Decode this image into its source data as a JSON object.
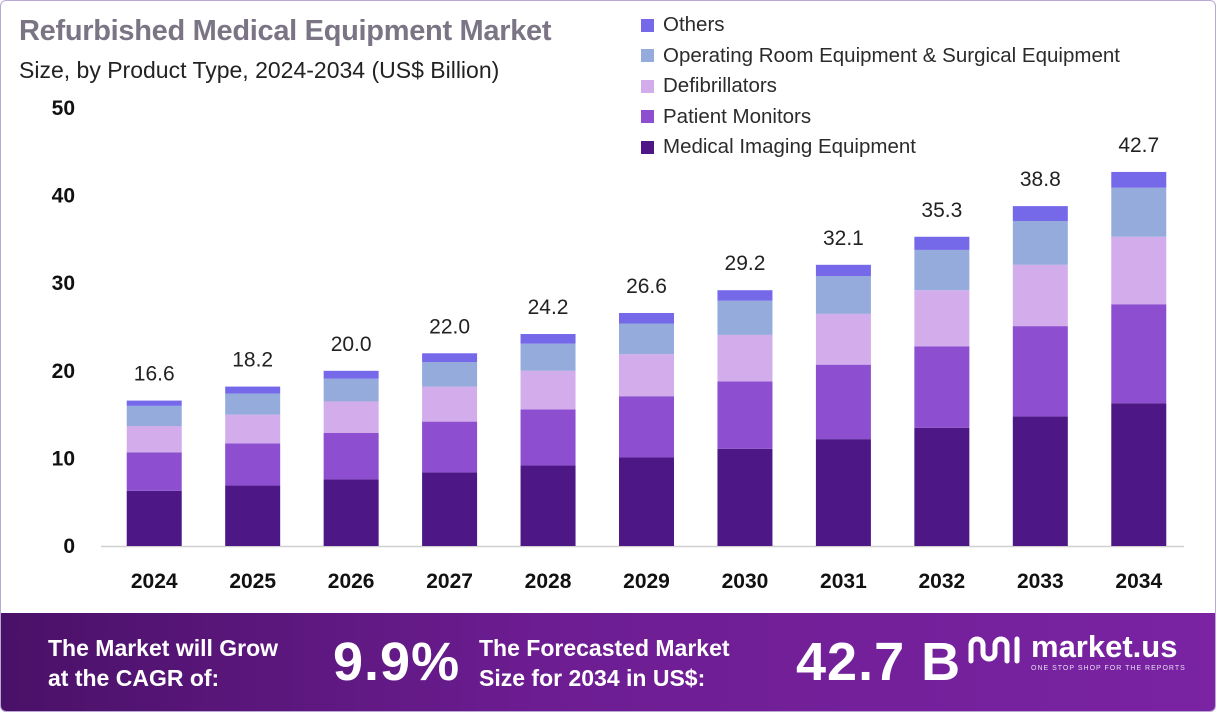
{
  "title": "Refurbished Medical Equipment Market",
  "subtitle": "Size, by Product Type, 2024-2034 (US$ Billion)",
  "colors": {
    "medical_imaging": "#4d1785",
    "patient_monitors": "#8d4fcf",
    "defibrillators": "#d3acec",
    "or_surgical": "#94abdb",
    "others": "#7569ea",
    "banner": "#6d1d92"
  },
  "chart_data": {
    "type": "stacked-bar",
    "title": "Refurbished Medical Equipment Market",
    "subtitle": "Size, by Product Type, 2024-2034 (US$ Billion)",
    "categories": [
      "2024",
      "2025",
      "2026",
      "2027",
      "2028",
      "2029",
      "2030",
      "2031",
      "2032",
      "2033",
      "2034"
    ],
    "yticks": [
      0,
      10,
      20,
      30,
      40,
      50
    ],
    "ylim": [
      0,
      50
    ],
    "grid": false,
    "legend_position": "top-right",
    "series": [
      {
        "name": "Medical Imaging Equipment",
        "color": "#4d1785",
        "values": [
          6.3,
          6.9,
          7.6,
          8.4,
          9.2,
          10.1,
          11.1,
          12.2,
          13.5,
          14.8,
          16.3
        ]
      },
      {
        "name": "Patient Monitors",
        "color": "#8d4fcf",
        "values": [
          4.4,
          4.8,
          5.3,
          5.8,
          6.4,
          7.0,
          7.7,
          8.5,
          9.3,
          10.3,
          11.3
        ]
      },
      {
        "name": "Defibrillators",
        "color": "#d3acec",
        "values": [
          3.0,
          3.3,
          3.6,
          4.0,
          4.4,
          4.8,
          5.3,
          5.8,
          6.4,
          7.0,
          7.7
        ]
      },
      {
        "name": "Operating Room Equipment & Surgical Equipment",
        "color": "#94abdb",
        "values": [
          2.3,
          2.4,
          2.6,
          2.8,
          3.1,
          3.5,
          3.9,
          4.3,
          4.6,
          5.0,
          5.6
        ]
      },
      {
        "name": "Others",
        "color": "#7569ea",
        "values": [
          0.6,
          0.8,
          0.9,
          1.0,
          1.1,
          1.2,
          1.2,
          1.3,
          1.5,
          1.7,
          1.8
        ]
      }
    ],
    "totals": [
      16.6,
      18.2,
      20.0,
      22.0,
      24.2,
      26.6,
      29.2,
      32.1,
      35.3,
      38.8,
      42.7
    ],
    "total_labels": [
      "16.6",
      "18.2",
      "20.0",
      "22.0",
      "24.2",
      "26.6",
      "29.2",
      "32.1",
      "35.3",
      "38.8",
      "42.7"
    ]
  },
  "legend": [
    {
      "label": "Others",
      "color": "#7569ea"
    },
    {
      "label": "Operating Room Equipment & Surgical Equipment",
      "color": "#94abdb"
    },
    {
      "label": "Defibrillators",
      "color": "#d3acec"
    },
    {
      "label": "Patient Monitors",
      "color": "#8d4fcf"
    },
    {
      "label": "Medical Imaging Equipment",
      "color": "#4d1785"
    }
  ],
  "banner": {
    "cagr_label_line1": "The Market will Grow",
    "cagr_label_line2": "at the CAGR of:",
    "cagr_value": "9.9%",
    "forecast_label_line1": "The Forecasted Market",
    "forecast_label_line2": "Size for 2034 in US$:",
    "forecast_value": "42.7 B",
    "logo_text": "market.us",
    "logo_tagline": "ONE STOP SHOP FOR THE REPORTS"
  }
}
